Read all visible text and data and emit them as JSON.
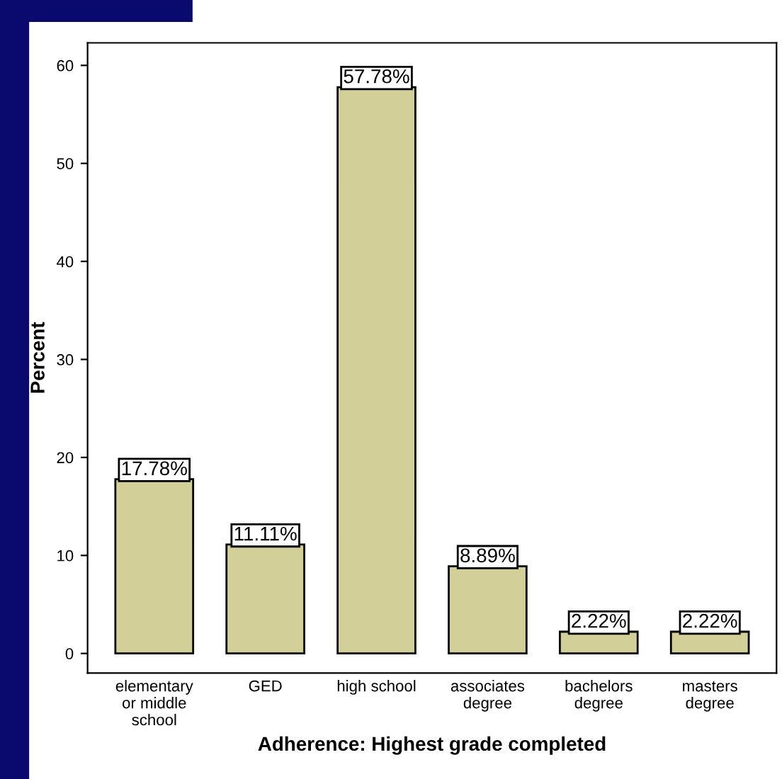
{
  "chart_data": {
    "type": "bar",
    "xlabel": "Adherence: Highest grade completed",
    "ylabel": "Percent",
    "categories": [
      "elementary\nor middle\nschool",
      "GED",
      "high school",
      "associates\ndegree",
      "bachelors\ndegree",
      "masters\ndegree"
    ],
    "values": [
      17.78,
      11.11,
      57.78,
      8.89,
      2.22,
      2.22
    ],
    "value_labels": [
      "17.78%",
      "11.11%",
      "57.78%",
      "8.89%",
      "2.22%",
      "2.22%"
    ],
    "color": "#d3cf99",
    "ylim": [
      -2,
      62.3
    ],
    "yticks": [
      0,
      10,
      20,
      30,
      40,
      50,
      60
    ],
    "grid": false
  }
}
